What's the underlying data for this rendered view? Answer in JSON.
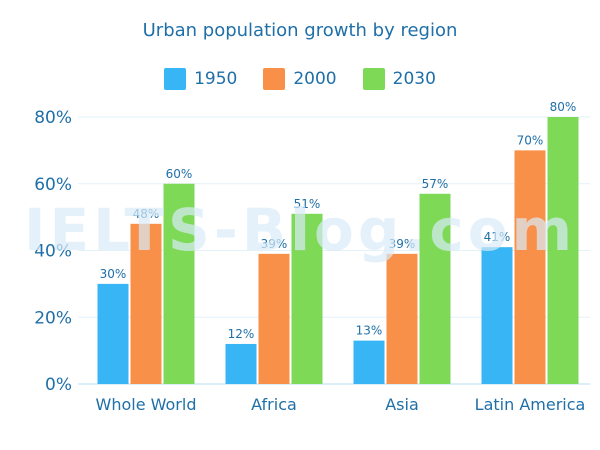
{
  "watermark": "IELTS-Blog.com",
  "chart_data": {
    "type": "bar",
    "title": "Urban population growth by region",
    "xlabel": "",
    "ylabel": "",
    "categories": [
      "Whole World",
      "Africa",
      "Asia",
      "Latin America"
    ],
    "series": [
      {
        "name": "1950",
        "color": "#37b5f5",
        "values": [
          30,
          12,
          13,
          41
        ]
      },
      {
        "name": "2000",
        "color": "#f9904a",
        "values": [
          48,
          39,
          39,
          70
        ]
      },
      {
        "name": "2030",
        "color": "#7ed957",
        "values": [
          60,
          51,
          57,
          80
        ]
      }
    ],
    "value_suffix": "%",
    "ylim": [
      0,
      80
    ],
    "yticks": [
      "0%",
      "20%",
      "40%",
      "60%",
      "80%"
    ],
    "grid": true,
    "legend_position": "top-center"
  }
}
